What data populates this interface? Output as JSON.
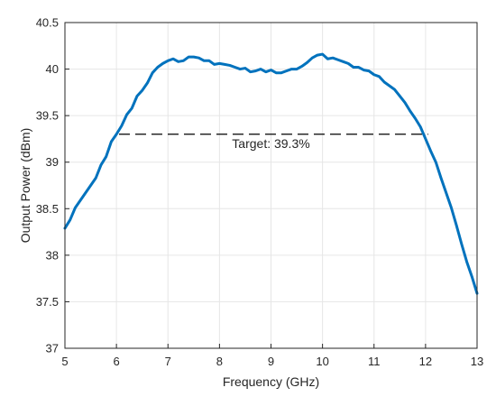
{
  "chart_data": {
    "type": "line",
    "title": "",
    "xlabel": "Frequency (GHz)",
    "ylabel": "Output Power (dBm)",
    "xlim": [
      5,
      13
    ],
    "ylim": [
      37,
      40.5
    ],
    "x_ticks": [
      5,
      6,
      7,
      8,
      9,
      10,
      11,
      12,
      13
    ],
    "x_tick_labels": [
      "5",
      "6",
      "7",
      "8",
      "9",
      "10",
      "11",
      "12",
      "13"
    ],
    "y_ticks": [
      37,
      37.5,
      38,
      38.5,
      39,
      39.5,
      40,
      40.5
    ],
    "y_tick_labels": [
      "37",
      "37.5",
      "38",
      "38.5",
      "39",
      "39.5",
      "40",
      "40.5"
    ],
    "grid": true,
    "series": [
      {
        "color": "#0072BD",
        "x": [
          5.0,
          5.1,
          5.2,
          5.3,
          5.4,
          5.5,
          5.6,
          5.7,
          5.8,
          5.9,
          6.0,
          6.1,
          6.2,
          6.3,
          6.4,
          6.5,
          6.6,
          6.7,
          6.8,
          6.9,
          7.0,
          7.1,
          7.2,
          7.3,
          7.4,
          7.5,
          7.6,
          7.7,
          7.8,
          7.9,
          8.0,
          8.1,
          8.2,
          8.3,
          8.4,
          8.5,
          8.6,
          8.7,
          8.8,
          8.9,
          9.0,
          9.1,
          9.2,
          9.3,
          9.4,
          9.5,
          9.6,
          9.7,
          9.8,
          9.9,
          10.0,
          10.1,
          10.2,
          10.3,
          10.4,
          10.5,
          10.6,
          10.7,
          10.8,
          10.9,
          11.0,
          11.1,
          11.2,
          11.3,
          11.4,
          11.5,
          11.6,
          11.7,
          11.8,
          11.9,
          12.0,
          12.1,
          12.2,
          12.3,
          12.4,
          12.5,
          12.6,
          12.7,
          12.8,
          12.9,
          13.0
        ],
        "y": [
          38.29,
          38.38,
          38.51,
          38.59,
          38.67,
          38.75,
          38.83,
          38.97,
          39.06,
          39.22,
          39.3,
          39.39,
          39.51,
          39.58,
          39.71,
          39.77,
          39.85,
          39.96,
          40.02,
          40.06,
          40.09,
          40.11,
          40.08,
          40.09,
          40.13,
          40.13,
          40.12,
          40.09,
          40.09,
          40.05,
          40.06,
          40.05,
          40.04,
          40.02,
          40.0,
          40.01,
          39.97,
          39.98,
          40.0,
          39.97,
          39.99,
          39.96,
          39.96,
          39.98,
          40.0,
          40.0,
          40.03,
          40.07,
          40.12,
          40.15,
          40.16,
          40.11,
          40.12,
          40.1,
          40.08,
          40.06,
          40.02,
          40.02,
          39.99,
          39.98,
          39.94,
          39.92,
          39.86,
          39.82,
          39.78,
          39.71,
          39.64,
          39.55,
          39.47,
          39.38,
          39.25,
          39.12,
          39.0,
          38.83,
          38.67,
          38.51,
          38.32,
          38.12,
          37.93,
          37.77,
          37.59
        ]
      }
    ],
    "target_line": {
      "x": [
        6.05,
        12.05
      ],
      "y": 39.3,
      "style": "dashed",
      "color": "#000000"
    },
    "annotations": [
      {
        "text": "Target: 39.3%",
        "x": 9.0,
        "y": 39.2
      }
    ]
  }
}
